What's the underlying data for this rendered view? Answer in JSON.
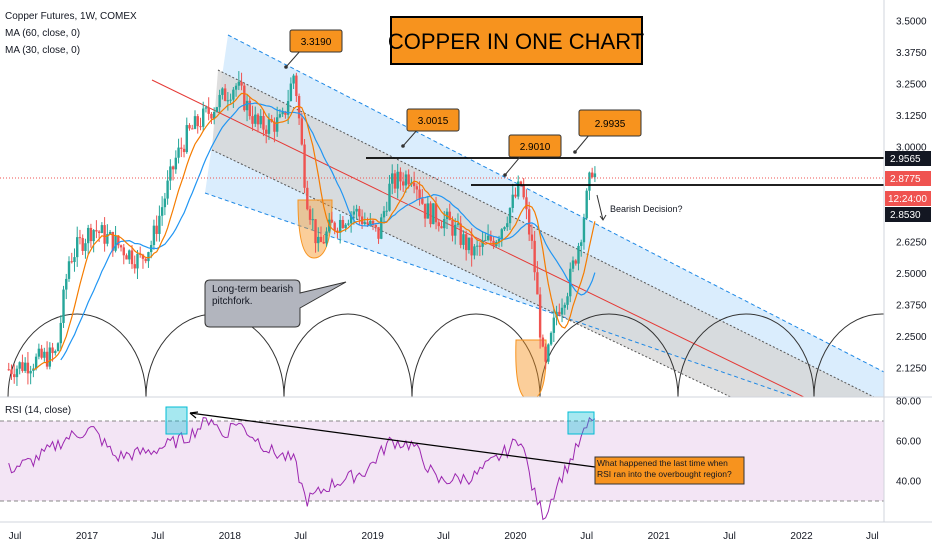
{
  "header": {
    "symbol": "Copper Futures, 1W, COMEX",
    "ma60": "MA (60, close, 0)",
    "ma30": "MA (30, close, 0)"
  },
  "title": "COPPER IN ONE CHART",
  "colors": {
    "up": "#26a69a",
    "down": "#ef5350",
    "ma60": "#2196f3",
    "ma30": "#f57c00",
    "rsi": "#9c27b0",
    "rsi_band": "#f3e5f5",
    "channel_fill": "#bbdefb",
    "inner_fill": "#d6d6d6",
    "mid_line": "#e53935",
    "callout": "#f7931e"
  },
  "chart_data": [
    {
      "type": "candlestick",
      "title": "Copper Futures, 1W, COMEX",
      "ylim": [
        2.03,
        3.55
      ],
      "y_ticks": [
        "3.5000",
        "3.3750",
        "3.2500",
        "3.1250",
        "3.0000",
        "2.8750",
        "2.7500",
        "2.6250",
        "2.5000",
        "2.3750",
        "2.2500",
        "2.1250"
      ],
      "x_ticks": [
        "Jul",
        "2017",
        "Jul",
        "2018",
        "Jul",
        "2019",
        "Jul",
        "2020",
        "Jul",
        "2021",
        "Jul",
        "2022",
        "Jul"
      ],
      "price_path": [
        {
          "x": "2016-06",
          "y": 2.12
        },
        {
          "x": "2016-08",
          "y": 2.15
        },
        {
          "x": "2016-10",
          "y": 2.18
        },
        {
          "x": "2016-11",
          "y": 2.55
        },
        {
          "x": "2016-12",
          "y": 2.62
        },
        {
          "x": "2017-01",
          "y": 2.68
        },
        {
          "x": "2017-03",
          "y": 2.62
        },
        {
          "x": "2017-05",
          "y": 2.55
        },
        {
          "x": "2017-06",
          "y": 2.62
        },
        {
          "x": "2017-08",
          "y": 2.95
        },
        {
          "x": "2017-09",
          "y": 3.05
        },
        {
          "x": "2017-10",
          "y": 3.1
        },
        {
          "x": "2017-12",
          "y": 3.2
        },
        {
          "x": "2018-01",
          "y": 3.25
        },
        {
          "x": "2018-03",
          "y": 3.08
        },
        {
          "x": "2018-05",
          "y": 3.1
        },
        {
          "x": "2018-06",
          "y": 3.3
        },
        {
          "x": "2018-07",
          "y": 2.82
        },
        {
          "x": "2018-08",
          "y": 2.6
        },
        {
          "x": "2018-09",
          "y": 2.68
        },
        {
          "x": "2018-11",
          "y": 2.75
        },
        {
          "x": "2019-01",
          "y": 2.65
        },
        {
          "x": "2019-02",
          "y": 2.85
        },
        {
          "x": "2019-04",
          "y": 2.9
        },
        {
          "x": "2019-05",
          "y": 2.75
        },
        {
          "x": "2019-07",
          "y": 2.7
        },
        {
          "x": "2019-09",
          "y": 2.58
        },
        {
          "x": "2019-11",
          "y": 2.65
        },
        {
          "x": "2020-01",
          "y": 2.85
        },
        {
          "x": "2020-02",
          "y": 2.58
        },
        {
          "x": "2020-03",
          "y": 2.1
        },
        {
          "x": "2020-04",
          "y": 2.35
        },
        {
          "x": "2020-05",
          "y": 2.45
        },
        {
          "x": "2020-06",
          "y": 2.65
        },
        {
          "x": "2020-07",
          "y": 2.92
        },
        {
          "x": "2020-07-24",
          "y": 2.88
        }
      ],
      "current_price": "2.8775",
      "price_labels": [
        {
          "label": "2.9565",
          "style": "level"
        },
        {
          "label": "2.8775",
          "style": "last"
        },
        {
          "label": "12:24:00",
          "style": "timer"
        },
        {
          "label": "2.8530",
          "style": "level"
        }
      ],
      "callouts": [
        "3.3190",
        "3.0015",
        "2.9010",
        "2.9935"
      ],
      "annotations": [
        "Long-term bearish pitchfork.",
        "Bearish Decision?"
      ],
      "indicators": [
        "MA (60, close, 0)",
        "MA (30, close, 0)"
      ]
    },
    {
      "type": "line",
      "title": "RSI (14, close)",
      "ylim": [
        20,
        80
      ],
      "y_ticks": [
        "80.00",
        "60.00",
        "40.00"
      ],
      "overbought": 70,
      "oversold": 30,
      "series": [
        {
          "name": "RSI (14, close)",
          "points": [
            {
              "x": "2016-06",
              "y": 46
            },
            {
              "x": "2016-08",
              "y": 50
            },
            {
              "x": "2016-11",
              "y": 62
            },
            {
              "x": "2017-01",
              "y": 66
            },
            {
              "x": "2017-03",
              "y": 52
            },
            {
              "x": "2017-06",
              "y": 55
            },
            {
              "x": "2017-09",
              "y": 62
            },
            {
              "x": "2017-11",
              "y": 72
            },
            {
              "x": "2017-12",
              "y": 62
            },
            {
              "x": "2018-01",
              "y": 70
            },
            {
              "x": "2018-04",
              "y": 55
            },
            {
              "x": "2018-06",
              "y": 50
            },
            {
              "x": "2018-07",
              "y": 30
            },
            {
              "x": "2018-09",
              "y": 38
            },
            {
              "x": "2018-12",
              "y": 45
            },
            {
              "x": "2019-02",
              "y": 60
            },
            {
              "x": "2019-04",
              "y": 58
            },
            {
              "x": "2019-06",
              "y": 40
            },
            {
              "x": "2019-09",
              "y": 42
            },
            {
              "x": "2019-12",
              "y": 56
            },
            {
              "x": "2020-01",
              "y": 62
            },
            {
              "x": "2020-02",
              "y": 35
            },
            {
              "x": "2020-03",
              "y": 22
            },
            {
              "x": "2020-04",
              "y": 38
            },
            {
              "x": "2020-05",
              "y": 48
            },
            {
              "x": "2020-06",
              "y": 60
            },
            {
              "x": "2020-07",
              "y": 72
            },
            {
              "x": "2020-07-24",
              "y": 70
            }
          ]
        }
      ],
      "annotation": "What happened the last time when RSI ran into the overbought region?"
    }
  ]
}
